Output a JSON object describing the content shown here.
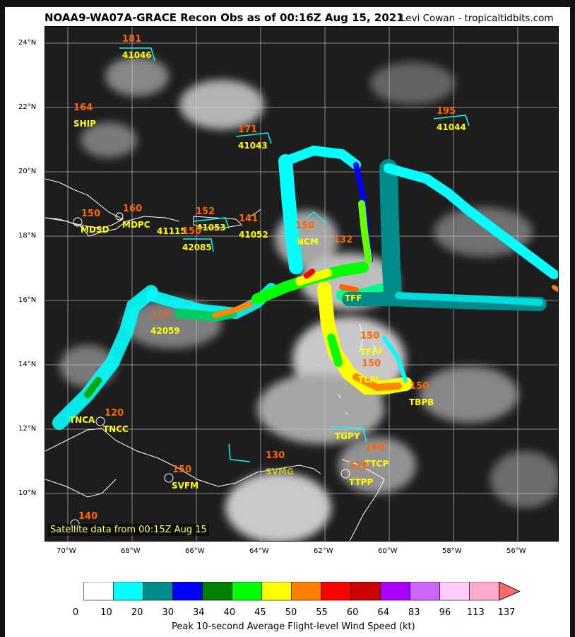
{
  "header": {
    "title": "NOAA9-WA07A-GRACE Recon Obs as of 00:16Z Aug 15, 2021",
    "credit": "Levi Cowan - tropicaltidbits.com"
  },
  "satellite_note": "Satellite data from 00:15Z Aug 15",
  "axes": {
    "lat_labels": [
      "24°N",
      "22°N",
      "20°N",
      "18°N",
      "16°N",
      "14°N",
      "12°N",
      "10°N"
    ],
    "lon_labels": [
      "70°W",
      "68°W",
      "66°W",
      "64°W",
      "62°W",
      "60°W",
      "58°W",
      "56°W"
    ]
  },
  "stations": [
    {
      "id": "41046",
      "val": "181"
    },
    {
      "id": "SHIP",
      "val": "164"
    },
    {
      "id": "41043",
      "val": "171"
    },
    {
      "id": "41044",
      "val": "195"
    },
    {
      "id": "MDSD",
      "val": "150"
    },
    {
      "id": "MDPC",
      "val": "160"
    },
    {
      "id": "41115",
      "val": ""
    },
    {
      "id": "41053",
      "val": "152"
    },
    {
      "id": "42085",
      "val": "150"
    },
    {
      "id": "41052",
      "val": "141"
    },
    {
      "id": "NCM",
      "val": "150"
    },
    {
      "id": "",
      "val": "132"
    },
    {
      "id": "TFF",
      "val": ""
    },
    {
      "id": "42059",
      "val": "128"
    },
    {
      "id": "TFFF",
      "val": "150"
    },
    {
      "id": "TLPL",
      "val": "150"
    },
    {
      "id": "TBPB",
      "val": "150"
    },
    {
      "id": "TNCA",
      "val": ""
    },
    {
      "id": "TNCC",
      "val": "120"
    },
    {
      "id": "TGPY",
      "val": ""
    },
    {
      "id": "TTCP",
      "val": "140"
    },
    {
      "id": "TTPP",
      "val": "130"
    },
    {
      "id": "SVMG",
      "val": "130"
    },
    {
      "id": "SVFM",
      "val": "150"
    },
    {
      "id": "",
      "val": "140"
    }
  ],
  "colorbar": {
    "title": "Peak 10-second Average Flight-level Wind Speed (kt)",
    "colors": [
      "#ffffff",
      "#00ffff",
      "#008b8b",
      "#0000ff",
      "#008000",
      "#00ff00",
      "#ffff00",
      "#ff7f00",
      "#ff0000",
      "#cc0000",
      "#aa00ff",
      "#cc66ff",
      "#ffccff",
      "#ffaacc"
    ],
    "tail_color": "#ff6a6a",
    "labels": [
      "0",
      "10",
      "20",
      "30",
      "34",
      "40",
      "45",
      "50",
      "55",
      "60",
      "64",
      "83",
      "96",
      "113",
      "137"
    ]
  }
}
